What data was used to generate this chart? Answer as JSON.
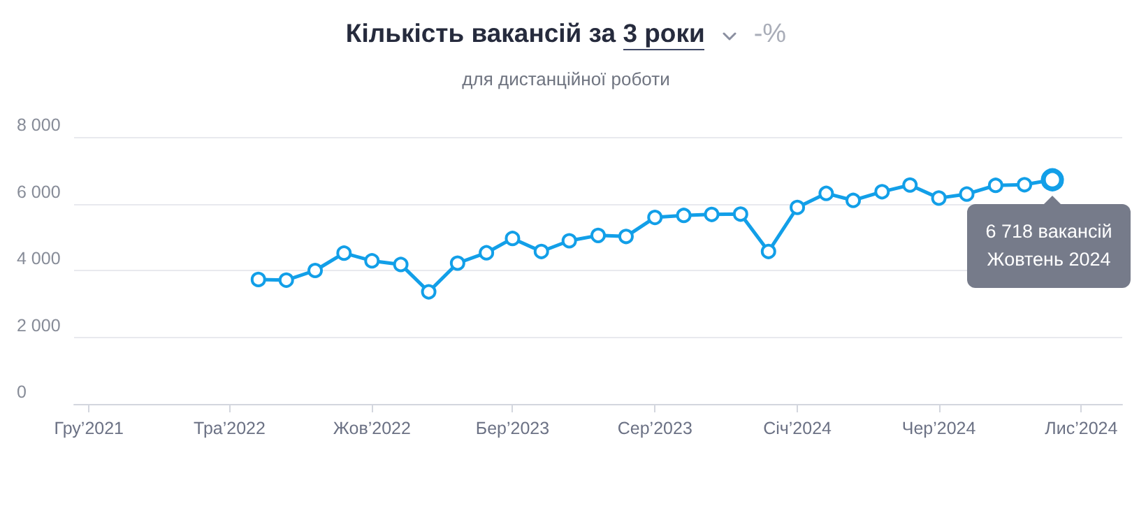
{
  "chart_data": {
    "type": "line",
    "title": "Кількість вакансій за 3 роки",
    "subtitle": "для дистанційної роботи",
    "annotations": [
      "-%",
      {
        "text": "6 718 вакансій\nЖовтень 2024",
        "x": "2024-10",
        "y": 6718
      }
    ],
    "x": [
      "2022-06",
      "2022-07",
      "2022-08",
      "2022-09",
      "2022-10",
      "2022-11",
      "2022-12",
      "2023-01",
      "2023-02",
      "2023-03",
      "2023-04",
      "2023-05",
      "2023-06",
      "2023-07",
      "2023-08",
      "2023-09",
      "2023-10",
      "2023-11",
      "2023-12",
      "2024-01",
      "2024-02",
      "2024-03",
      "2024-04",
      "2024-05",
      "2024-06",
      "2024-07",
      "2024-08",
      "2024-09",
      "2024-10"
    ],
    "series": [
      {
        "color": "#129fe8",
        "values": [
          3730,
          3710,
          4000,
          4520,
          4290,
          4180,
          3360,
          4220,
          4530,
          4960,
          4570,
          4890,
          5050,
          5020,
          5590,
          5650,
          5680,
          5690,
          4570,
          5890,
          6310,
          6100,
          6360,
          6560,
          6170,
          6290,
          6550,
          6570,
          6718
        ]
      }
    ],
    "xlim": [
      "2021-11-15",
      "2024-12-15"
    ],
    "xticks": [
      {
        "value": "2021-12",
        "label": "Гру’2021"
      },
      {
        "value": "2022-05",
        "label": "Тра’2022"
      },
      {
        "value": "2022-10",
        "label": "Жов’2022"
      },
      {
        "value": "2023-03",
        "label": "Бер’2023"
      },
      {
        "value": "2023-08",
        "label": "Сер’2023"
      },
      {
        "value": "2024-01",
        "label": "Січ’2024"
      },
      {
        "value": "2024-06",
        "label": "Чер’2024"
      },
      {
        "value": "2024-11",
        "label": "Лис’2024"
      }
    ],
    "ylim": [
      0,
      8000
    ],
    "yticks": [
      0,
      {
        "value": 2000,
        "label": "2 000"
      },
      {
        "value": 4000,
        "label": "4 000"
      },
      {
        "value": 6000,
        "label": "6 000"
      },
      {
        "value": 8000,
        "label": "8 000"
      }
    ],
    "grid": "y",
    "marker": "circle",
    "line_style": "solid"
  }
}
